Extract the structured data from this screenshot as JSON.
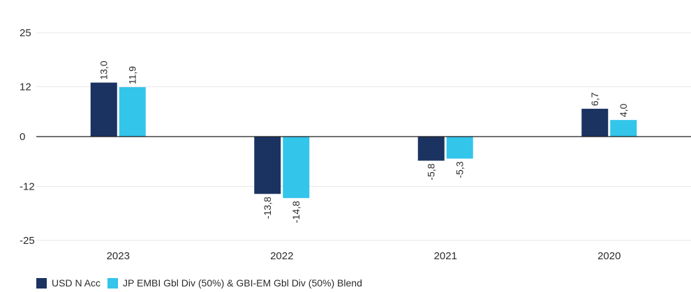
{
  "chart_data": {
    "type": "bar",
    "categories": [
      "2023",
      "2022",
      "2021",
      "2020"
    ],
    "series": [
      {
        "name": "USD N Acc",
        "values": [
          13.0,
          -13.8,
          -5.8,
          6.7
        ],
        "labels": [
          "13,0",
          "-13,8",
          "-5,8",
          "6,7"
        ],
        "color": "#1b3361"
      },
      {
        "name": "JP EMBI Gbl Div (50%) & GBI-EM Gbl Div (50%) Blend",
        "values": [
          11.9,
          -14.8,
          -5.3,
          4.0
        ],
        "labels": [
          "11,9",
          "-14,8",
          "-5,3",
          "4,0"
        ],
        "color": "#33c5ea"
      }
    ],
    "yticks": [
      25,
      12,
      0,
      -12,
      -25
    ],
    "ylim": [
      -25,
      25
    ],
    "grid": true,
    "legend_position": "bottom-left"
  }
}
